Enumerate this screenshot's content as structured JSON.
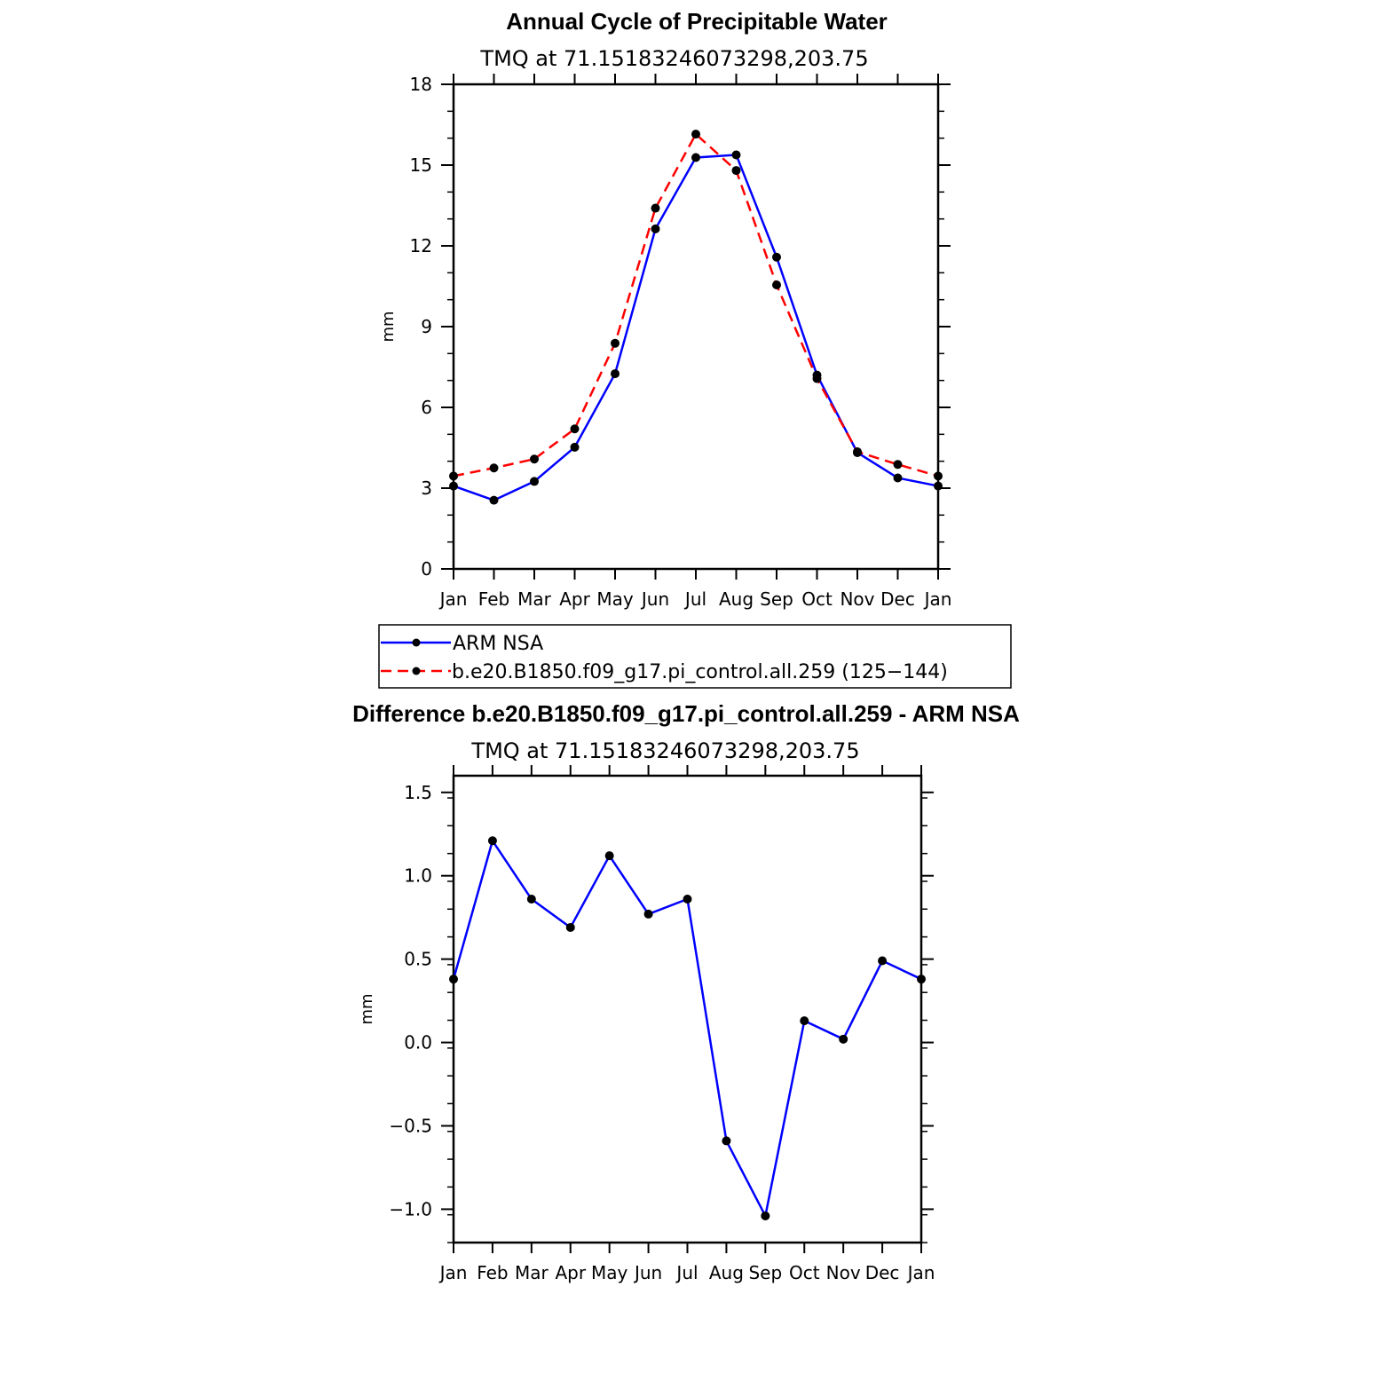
{
  "chart_data": [
    {
      "type": "line",
      "title": "Annual Cycle of Precipitable Water",
      "subtitle": "TMQ at 71.15183246073298,203.75",
      "xlabel": "",
      "ylabel": "mm",
      "categories": [
        "Jan",
        "Feb",
        "Mar",
        "Apr",
        "May",
        "Jun",
        "Jul",
        "Aug",
        "Sep",
        "Oct",
        "Nov",
        "Dec",
        "Jan"
      ],
      "ylim": [
        0,
        18
      ],
      "yticks": [
        "0",
        "3",
        "6",
        "9",
        "12",
        "15",
        "18"
      ],
      "ytick_values": [
        0,
        3,
        6,
        9,
        12,
        15,
        18
      ],
      "series": [
        {
          "name": "ARM NSA",
          "color": "#0000ff",
          "dash": "solid",
          "values": [
            3.08,
            2.55,
            3.25,
            4.52,
            7.25,
            12.63,
            15.28,
            15.38,
            11.58,
            7.2,
            4.32,
            3.38,
            3.08
          ]
        },
        {
          "name": "b.e20.B1850.f09_g17.pi_control.all.259 (125−144)",
          "color": "#ff0000",
          "dash": "dashed",
          "values": [
            3.45,
            3.75,
            4.08,
            5.2,
            8.38,
            13.4,
            16.15,
            14.8,
            10.55,
            7.07,
            4.35,
            3.88,
            3.45
          ]
        }
      ],
      "legend": [
        "ARM NSA",
        "b.e20.B1850.f09_g17.pi_control.all.259 (125−144)"
      ],
      "legend_position": "below"
    },
    {
      "type": "line",
      "title": "Difference b.e20.B1850.f09_g17.pi_control.all.259 - ARM NSA",
      "subtitle": "TMQ at 71.15183246073298,203.75",
      "xlabel": "",
      "ylabel": "mm",
      "categories": [
        "Jan",
        "Feb",
        "Mar",
        "Apr",
        "May",
        "Jun",
        "Jul",
        "Aug",
        "Sep",
        "Oct",
        "Nov",
        "Dec",
        "Jan"
      ],
      "ylim": [
        -1.2,
        1.6
      ],
      "yticks": [
        "−1.0",
        "−0.5",
        "0.0",
        "0.5",
        "1.0",
        "1.5"
      ],
      "ytick_values": [
        -1.0,
        -0.5,
        0.0,
        0.5,
        1.0,
        1.5
      ],
      "series": [
        {
          "name": "difference",
          "color": "#0000ff",
          "dash": "solid",
          "values": [
            0.38,
            1.21,
            0.86,
            0.69,
            1.12,
            0.77,
            0.86,
            -0.59,
            -1.04,
            0.13,
            0.02,
            0.49,
            0.38
          ]
        }
      ]
    }
  ]
}
